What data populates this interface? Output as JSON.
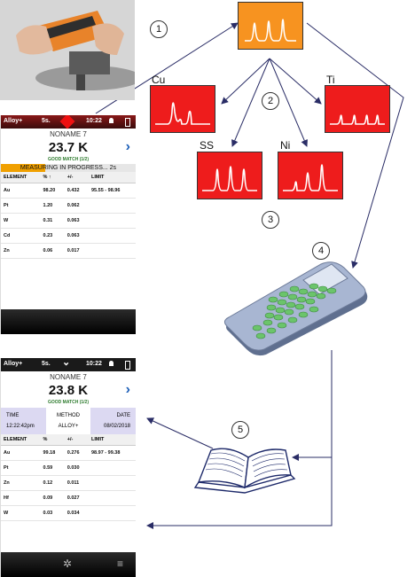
{
  "steps": [
    "1",
    "2",
    "3",
    "4",
    "5"
  ],
  "spectra": {
    "cu": "Cu",
    "ti": "Ti",
    "ss": "SS",
    "ni": "Ni"
  },
  "phone1": {
    "status": {
      "mode": "Alloy+",
      "time_s": "5s.",
      "clock": "10:22"
    },
    "name": "NONAME 7",
    "reading": "23.7 K",
    "match": "GOOD MATCH (1/2)",
    "progress": "MEASURING IN PROGRESS... 2s",
    "headers": [
      "ELEMENT",
      "% ↑",
      "+/-",
      "LIMIT"
    ],
    "rows": [
      [
        "Au",
        "98.20",
        "0.432",
        "95.55 - 98.96"
      ],
      [
        "Pt",
        "1.20",
        "0.062",
        ""
      ],
      [
        "W",
        "0.31",
        "0.063",
        ""
      ],
      [
        "Cd",
        "0.23",
        "0.063",
        ""
      ],
      [
        "Zn",
        "0.06",
        "0.017",
        ""
      ]
    ]
  },
  "phone2": {
    "status": {
      "mode": "Alloy+",
      "time_s": "5s.",
      "clock": "10:22"
    },
    "name": "NONAME 7",
    "reading": "23.8 K",
    "match": "GOOD MATCH (1/2)",
    "info": {
      "time_label": "TIME",
      "time_value": "12:22:42pm",
      "method_label": "METHOD",
      "method_value": "ALLOY+",
      "date_label": "DATE",
      "date_value": "08/02/2018"
    },
    "headers": [
      "ELEMENT",
      "%",
      "+/-",
      "LIMIT"
    ],
    "rows": [
      [
        "Au",
        "99.18",
        "0.276",
        "98.97 - 99.38"
      ],
      [
        "Pt",
        "0.59",
        "0.030",
        ""
      ],
      [
        "Zn",
        "0.12",
        "0.011",
        ""
      ],
      [
        "Hf",
        "0.09",
        "0.027",
        ""
      ],
      [
        "W",
        "0.03",
        "0.034",
        ""
      ]
    ]
  },
  "colors": {
    "orange": "#f79320",
    "red": "#ee1c1c",
    "line": "#2a2d66"
  },
  "icons": [
    "gear-icon",
    "menu-icon",
    "chevron-right-icon",
    "chevron-down-icon",
    "calculator-icon",
    "book-icon",
    "battery-icon",
    "user-icon"
  ]
}
